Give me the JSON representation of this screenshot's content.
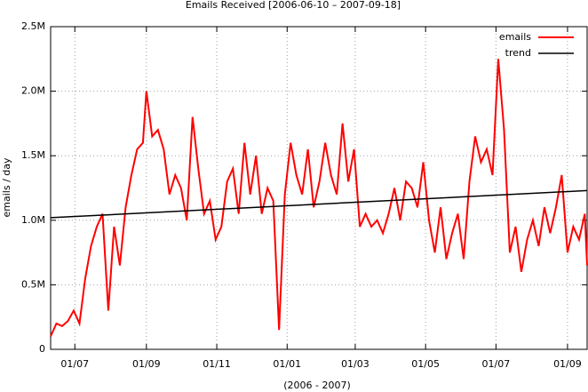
{
  "chart_data": {
    "type": "line",
    "title": "Emails Received [2006-06-10 – 2007-09-18]",
    "xlabel": "(2006 - 2007)",
    "ylabel": "emails / day",
    "xlim": [
      "2006-06-10",
      "2007-09-18"
    ],
    "xticks": [
      {
        "value": "2006-07-01",
        "label": "01/07"
      },
      {
        "value": "2006-09-01",
        "label": "01/09"
      },
      {
        "value": "2006-11-01",
        "label": "01/11"
      },
      {
        "value": "2007-01-01",
        "label": "01/01"
      },
      {
        "value": "2007-03-01",
        "label": "01/03"
      },
      {
        "value": "2007-05-01",
        "label": "01/05"
      },
      {
        "value": "2007-07-01",
        "label": "01/07"
      },
      {
        "value": "2007-09-01",
        "label": "01/09"
      }
    ],
    "ylim": [
      0,
      2.5
    ],
    "yticks": [
      0,
      {
        "value": 0.5,
        "label": "0.5M"
      },
      {
        "value": 1.0,
        "label": "1.0M"
      },
      {
        "value": 1.5,
        "label": "1.5M"
      },
      {
        "value": 2.0,
        "label": "2.0M"
      },
      {
        "value": 2.5,
        "label": "2.5M"
      }
    ],
    "grid": true,
    "legend": "top-right",
    "series": [
      {
        "name": "emails",
        "color": "#ff0000",
        "x": [
          "2006-06-10",
          "2006-06-15",
          "2006-06-20",
          "2006-06-25",
          "2006-06-30",
          "2006-07-05",
          "2006-07-10",
          "2006-07-15",
          "2006-07-20",
          "2006-07-25",
          "2006-07-30",
          "2006-08-04",
          "2006-08-09",
          "2006-08-14",
          "2006-08-19",
          "2006-08-24",
          "2006-08-29",
          "2006-09-01",
          "2006-09-06",
          "2006-09-11",
          "2006-09-16",
          "2006-09-21",
          "2006-09-26",
          "2006-10-01",
          "2006-10-06",
          "2006-10-11",
          "2006-10-16",
          "2006-10-21",
          "2006-10-26",
          "2006-10-31",
          "2006-11-05",
          "2006-11-10",
          "2006-11-15",
          "2006-11-20",
          "2006-11-25",
          "2006-11-30",
          "2006-12-05",
          "2006-12-10",
          "2006-12-15",
          "2006-12-20",
          "2006-12-25",
          "2006-12-30",
          "2007-01-04",
          "2007-01-09",
          "2007-01-14",
          "2007-01-19",
          "2007-01-24",
          "2007-01-29",
          "2007-02-03",
          "2007-02-08",
          "2007-02-13",
          "2007-02-18",
          "2007-02-23",
          "2007-02-28",
          "2007-03-05",
          "2007-03-10",
          "2007-03-15",
          "2007-03-20",
          "2007-03-25",
          "2007-03-30",
          "2007-04-04",
          "2007-04-09",
          "2007-04-14",
          "2007-04-19",
          "2007-04-24",
          "2007-04-29",
          "2007-05-04",
          "2007-05-09",
          "2007-05-14",
          "2007-05-19",
          "2007-05-24",
          "2007-05-29",
          "2007-06-03",
          "2007-06-08",
          "2007-06-13",
          "2007-06-18",
          "2007-06-23",
          "2007-06-28",
          "2007-07-03",
          "2007-07-08",
          "2007-07-13",
          "2007-07-18",
          "2007-07-23",
          "2007-07-28",
          "2007-08-02",
          "2007-08-07",
          "2007-08-12",
          "2007-08-17",
          "2007-08-22",
          "2007-08-27",
          "2007-09-01",
          "2007-09-06",
          "2007-09-11",
          "2007-09-16",
          "2007-09-18"
        ],
        "values": [
          0.1,
          0.2,
          0.18,
          0.22,
          0.3,
          0.2,
          0.55,
          0.8,
          0.95,
          1.05,
          0.3,
          0.95,
          0.65,
          1.1,
          1.35,
          1.55,
          1.6,
          2.0,
          1.65,
          1.7,
          1.55,
          1.2,
          1.35,
          1.25,
          1.0,
          1.8,
          1.4,
          1.05,
          1.15,
          0.85,
          0.95,
          1.3,
          1.4,
          1.05,
          1.6,
          1.2,
          1.5,
          1.05,
          1.25,
          1.15,
          0.15,
          1.2,
          1.6,
          1.35,
          1.2,
          1.55,
          1.1,
          1.3,
          1.6,
          1.35,
          1.2,
          1.75,
          1.3,
          1.55,
          0.95,
          1.05,
          0.95,
          1.0,
          0.9,
          1.05,
          1.25,
          1.0,
          1.3,
          1.25,
          1.1,
          1.45,
          1.0,
          0.75,
          1.1,
          0.7,
          0.9,
          1.05,
          0.7,
          1.3,
          1.65,
          1.45,
          1.55,
          1.35,
          2.25,
          1.7,
          0.75,
          0.95,
          0.6,
          0.85,
          1.0,
          0.8,
          1.1,
          0.9,
          1.1,
          1.35,
          0.75,
          0.95,
          0.85,
          1.05,
          0.65
        ]
      },
      {
        "name": "trend",
        "color": "#000000",
        "x": [
          "2006-06-10",
          "2007-09-18"
        ],
        "values": [
          1.02,
          1.23
        ]
      }
    ]
  }
}
